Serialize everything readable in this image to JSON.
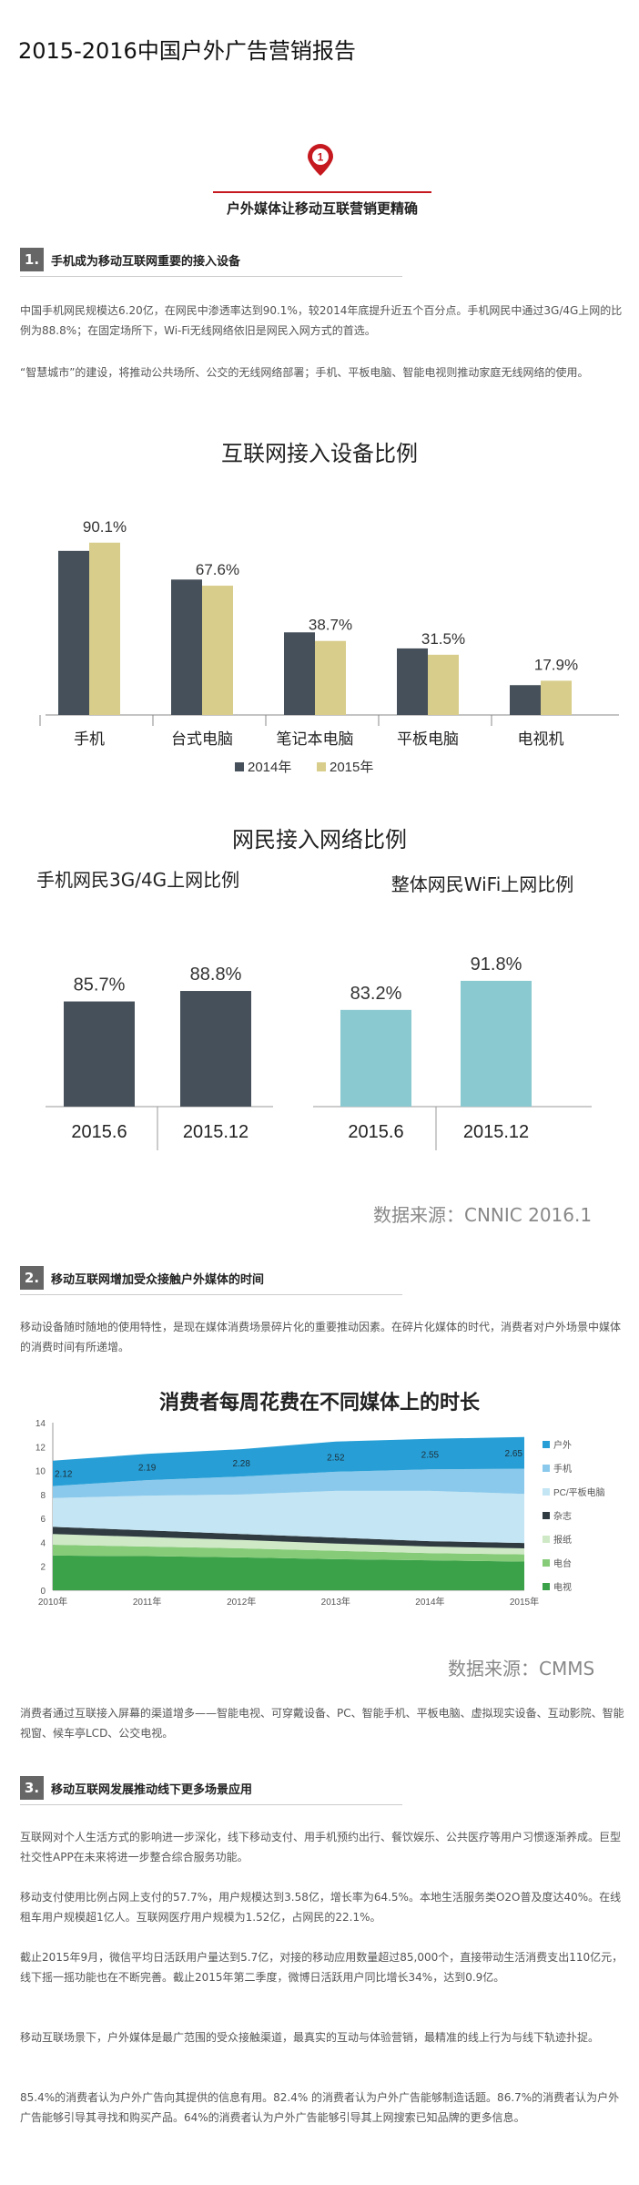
{
  "article": {
    "title": "2015-2016中国户外广告营销报告",
    "chapter_number": "1",
    "chapter_title": "户外媒体让移动互联营销更精确"
  },
  "sections": [
    {
      "number": "1.",
      "heading": "手机成为移动互联网重要的接入设备",
      "paragraphs": [
        "中国手机网民规模达6.20亿，在网民中渗透率达到90.1%，较2014年底提升近五个百分点。手机网民中通过3G/4G上网的比例为88.8%；在固定场所下，Wi-Fi无线网络依旧是网民入网方式的首选。",
        "“智慧城市”的建设，将推动公共场所、公交的无线网络部署；手机、平板电脑、智能电视则推动家庭无线网络的使用。"
      ]
    },
    {
      "number": "2.",
      "heading": "移动互联网增加受众接触户外媒体的时间",
      "paragraphs": [
        "移动设备随时随地的使用特性，是现在媒体消费场景碎片化的重要推动因素。在碎片化媒体的时代，消费者对户外场景中媒体的消费时间有所递增。",
        "消费者通过互联接入屏幕的渠道增多——智能电视、可穿戴设备、PC、智能手机、平板电脑、虚拟现实设备、互动影院、智能视窗、候车亭LCD、公交电视。"
      ]
    },
    {
      "number": "3.",
      "heading": "移动互联网发展推动线下更多场景应用",
      "paragraphs": [
        "互联网对个人生活方式的影响进一步深化，线下移动支付、用手机预约出行、餐饮娱乐、公共医疗等用户习惯逐渐养成。巨型社交性APP在未来将进一步整合综合服务功能。",
        "移动支付使用比例占网上支付的57.7%，用户规模达到3.58亿，增长率为64.5%。本地生活服务类O2O普及度达40%。在线租车用户规模超1亿人。互联网医疗用户规模为1.52亿，占网民的22.1%。",
        "截止2015年9月，微信平均日活跃用户量达到5.7亿，对接的移动应用数量超过85,000个，直接带动生活消费支出110亿元，线下摇一摇功能也在不断完善。截止2015年第二季度，微博日活跃用户同比增长34%，达到0.9亿。",
        "移动互联场景下，户外媒体是最广范围的受众接触渠道，最真实的互动与体验营销，最精准的线上行为与线下轨迹扑捉。",
        "85.4%的消费者认为户外广告向其提供的信息有用。82.4% 的消费者认为户外广告能够制造话题。86.7%的消费者认为户外广告能够引导其寻找和购买产品。64%的消费者认为户外广告能够引导其上网搜索已知品牌的更多信息。"
      ]
    }
  ],
  "chart_data": [
    {
      "type": "bar",
      "title": "互联网接入设备比例",
      "categories": [
        "手机",
        "台式电脑",
        "笔记本电脑",
        "平板电脑",
        "电视机"
      ],
      "series": [
        {
          "name": "2014年",
          "color": "#46505a",
          "values": [
            85.8,
            70.8,
            43.2,
            34.8,
            15.6
          ]
        },
        {
          "name": "2015年",
          "color": "#d8cd8b",
          "values": [
            90.1,
            67.6,
            38.7,
            31.5,
            17.9
          ]
        }
      ],
      "value_labels": [
        "90.1%",
        "67.6%",
        "38.7%",
        "31.5%",
        "17.9%"
      ],
      "ylim": [
        0,
        100
      ]
    },
    {
      "type": "bar",
      "title": "网民接入网络比例",
      "subtitle": "手机网民3G/4G上网比例",
      "categories": [
        "2015.6",
        "2015.12"
      ],
      "values": [
        85.7,
        88.8
      ],
      "value_labels": [
        "85.7%",
        "88.8%"
      ],
      "color": "#46505a",
      "ylim": [
        60,
        95
      ]
    },
    {
      "type": "bar",
      "subtitle": "整体网民WiFi上网比例",
      "categories": [
        "2015.6",
        "2015.12"
      ],
      "values": [
        83.2,
        91.8
      ],
      "value_labels": [
        "83.2%",
        "91.8%"
      ],
      "color": "#8ac9d0",
      "ylim": [
        60,
        95
      ],
      "source": "数据来源：CNNIC 2016.1"
    },
    {
      "type": "area",
      "title": "消费者每周花费在不同媒体上的时长",
      "x": [
        "2010年",
        "2011年",
        "2012年",
        "2013年",
        "2014年",
        "2015年"
      ],
      "ylim": [
        0,
        14
      ],
      "yticks": [
        "0",
        "2",
        "4",
        "6",
        "8",
        "10",
        "12",
        "14"
      ],
      "series": [
        {
          "name": "电视",
          "color": "#3ca24a",
          "values": [
            2.9,
            2.85,
            2.75,
            2.6,
            2.5,
            2.4
          ]
        },
        {
          "name": "电台",
          "color": "#86cb78",
          "values": [
            0.9,
            0.8,
            0.75,
            0.7,
            0.6,
            0.6
          ]
        },
        {
          "name": "报纸",
          "color": "#cfe9c6",
          "values": [
            0.9,
            0.8,
            0.7,
            0.6,
            0.55,
            0.5
          ]
        },
        {
          "name": "杂志",
          "color": "#2f3b41",
          "values": [
            0.6,
            0.55,
            0.5,
            0.5,
            0.45,
            0.45
          ]
        },
        {
          "name": "PC/平板电脑",
          "color": "#c4e5f3",
          "values": [
            2.4,
            2.9,
            3.3,
            3.9,
            4.2,
            4.1
          ]
        },
        {
          "name": "手机",
          "color": "#8ac9ec",
          "values": [
            1.0,
            1.3,
            1.5,
            1.6,
            1.8,
            2.1
          ]
        },
        {
          "name": "户外",
          "color": "#279fd6",
          "values": [
            2.12,
            2.19,
            2.28,
            2.52,
            2.55,
            2.65
          ]
        }
      ],
      "point_labels": [
        "2.12",
        "2.19",
        "2.28",
        "2.52",
        "2.55",
        "2.65"
      ],
      "source": "数据来源：CMMS"
    }
  ]
}
